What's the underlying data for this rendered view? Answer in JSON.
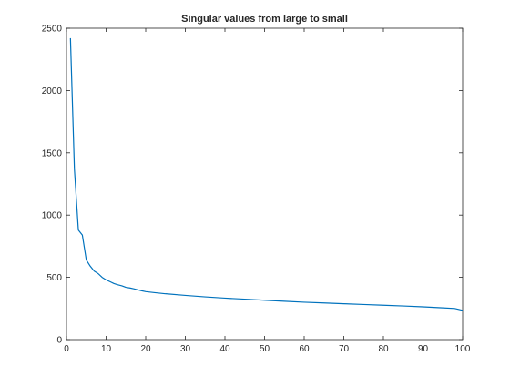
{
  "chart_data": {
    "type": "line",
    "title": "Singular values from large to small",
    "xlabel": "",
    "ylabel": "",
    "xlim": [
      0,
      100
    ],
    "ylim": [
      0,
      2500
    ],
    "xticks": [
      0,
      10,
      20,
      30,
      40,
      50,
      60,
      70,
      80,
      90,
      100
    ],
    "yticks": [
      0,
      500,
      1000,
      1500,
      2000,
      2500
    ],
    "grid": false,
    "series": [
      {
        "color": "#0072BD",
        "x": [
          1,
          2,
          3,
          4,
          5,
          6,
          7,
          8,
          9,
          10,
          11,
          12,
          13,
          14,
          15,
          16,
          17,
          18,
          19,
          20,
          22,
          25,
          30,
          35,
          40,
          45,
          50,
          55,
          60,
          65,
          70,
          75,
          80,
          85,
          90,
          95,
          98,
          100
        ],
        "y": [
          2420,
          1370,
          880,
          840,
          640,
          590,
          550,
          530,
          500,
          480,
          465,
          450,
          440,
          432,
          420,
          415,
          408,
          400,
          392,
          385,
          378,
          368,
          355,
          343,
          333,
          325,
          316,
          308,
          300,
          294,
          288,
          282,
          276,
          270,
          263,
          255,
          250,
          235
        ]
      }
    ]
  }
}
